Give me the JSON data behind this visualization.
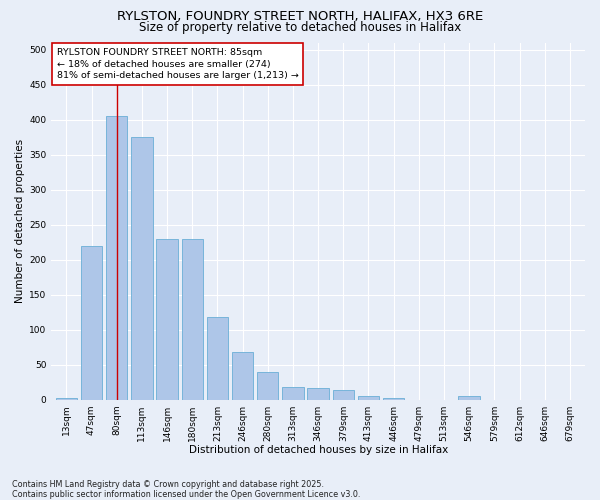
{
  "title_line1": "RYLSTON, FOUNDRY STREET NORTH, HALIFAX, HX3 6RE",
  "title_line2": "Size of property relative to detached houses in Halifax",
  "xlabel": "Distribution of detached houses by size in Halifax",
  "ylabel": "Number of detached properties",
  "categories": [
    "13sqm",
    "47sqm",
    "80sqm",
    "113sqm",
    "146sqm",
    "180sqm",
    "213sqm",
    "246sqm",
    "280sqm",
    "313sqm",
    "346sqm",
    "379sqm",
    "413sqm",
    "446sqm",
    "479sqm",
    "513sqm",
    "546sqm",
    "579sqm",
    "612sqm",
    "646sqm",
    "679sqm"
  ],
  "values": [
    2,
    220,
    405,
    375,
    230,
    230,
    118,
    68,
    40,
    18,
    17,
    14,
    5,
    2,
    0,
    0,
    5,
    0,
    0,
    0,
    0
  ],
  "bar_color": "#aec6e8",
  "bar_edge_color": "#6aaed6",
  "highlight_bar_index": 2,
  "highlight_line_color": "#cc0000",
  "annotation_text": "RYLSTON FOUNDRY STREET NORTH: 85sqm\n← 18% of detached houses are smaller (274)\n81% of semi-detached houses are larger (1,213) →",
  "annotation_box_color": "#ffffff",
  "annotation_box_edge_color": "#cc0000",
  "ylim": [
    0,
    510
  ],
  "yticks": [
    0,
    50,
    100,
    150,
    200,
    250,
    300,
    350,
    400,
    450,
    500
  ],
  "background_color": "#e8eef8",
  "grid_color": "#ffffff",
  "footnote": "Contains HM Land Registry data © Crown copyright and database right 2025.\nContains public sector information licensed under the Open Government Licence v3.0.",
  "title_fontsize": 9.5,
  "subtitle_fontsize": 8.5,
  "axis_label_fontsize": 7.5,
  "tick_fontsize": 6.5,
  "annotation_fontsize": 6.8,
  "footnote_fontsize": 5.8
}
